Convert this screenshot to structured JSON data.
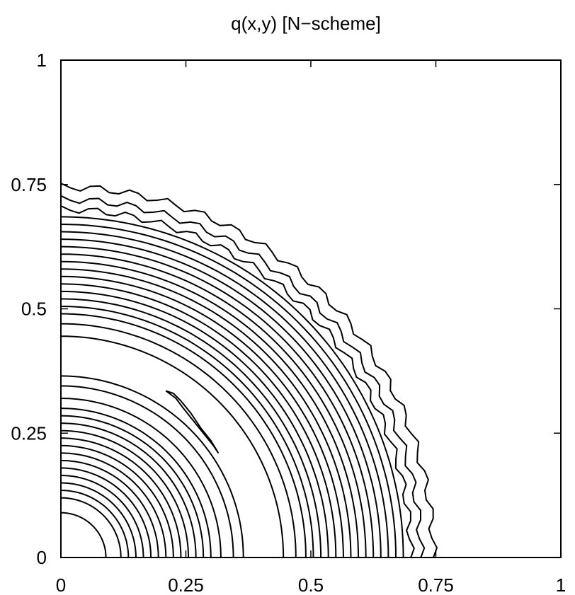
{
  "chart_data": {
    "type": "contour",
    "title": "q(x,y)   [N−scheme]",
    "xlabel": "",
    "ylabel": "",
    "xlim": [
      0,
      1
    ],
    "ylim": [
      0,
      1
    ],
    "xticks": [
      {
        "value": 0,
        "label": "0"
      },
      {
        "value": 0.25,
        "label": "0.25"
      },
      {
        "value": 0.5,
        "label": "0.5"
      },
      {
        "value": 0.75,
        "label": "0.75"
      },
      {
        "value": 1,
        "label": "1"
      }
    ],
    "yticks": [
      {
        "value": 0,
        "label": "0"
      },
      {
        "value": 0.25,
        "label": "0.25"
      },
      {
        "value": 0.5,
        "label": "0.5"
      },
      {
        "value": 0.75,
        "label": "0.75"
      },
      {
        "value": 1,
        "label": "1"
      }
    ],
    "inner_contour_radii": [
      0.09,
      0.12,
      0.135,
      0.15,
      0.165,
      0.18,
      0.195,
      0.21,
      0.225,
      0.24,
      0.255,
      0.27,
      0.285,
      0.3,
      0.32,
      0.345,
      0.365
    ],
    "outer_contour_radii": [
      0.445,
      0.47,
      0.49,
      0.505,
      0.52,
      0.535,
      0.55,
      0.565,
      0.58,
      0.595,
      0.61,
      0.625,
      0.64,
      0.655,
      0.67,
      0.685,
      0.7,
      0.72,
      0.745
    ],
    "island_contour": [
      [
        0.21,
        0.335
      ],
      [
        0.225,
        0.33
      ],
      [
        0.24,
        0.315
      ],
      [
        0.26,
        0.29
      ],
      [
        0.28,
        0.26
      ],
      [
        0.3,
        0.235
      ],
      [
        0.315,
        0.21
      ],
      [
        0.305,
        0.225
      ],
      [
        0.285,
        0.25
      ],
      [
        0.265,
        0.275
      ],
      [
        0.245,
        0.3
      ],
      [
        0.23,
        0.32
      ]
    ],
    "grid": false
  }
}
